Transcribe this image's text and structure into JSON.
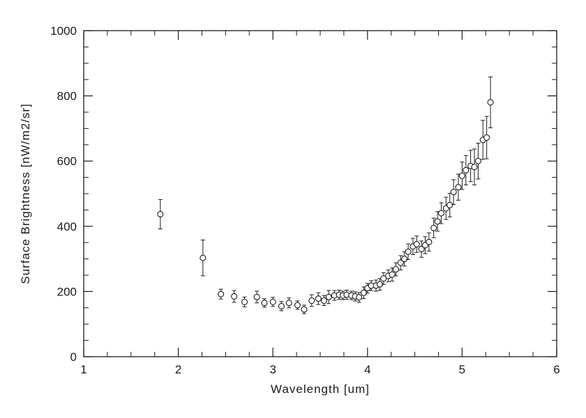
{
  "chart_data": {
    "type": "scatter",
    "title": "",
    "xlabel": "Wavelength [um]",
    "ylabel": "Surface Brightness [nW/m2/sr]",
    "xlim": [
      1,
      6
    ],
    "ylim": [
      0,
      1000
    ],
    "x_major_step": 1,
    "x_minor_step": 0.25,
    "y_major_step": 200,
    "y_minor_step": 50,
    "grid": "off",
    "legend": "none",
    "marker": "open-circle",
    "error_bars": true,
    "color": "#1a1a1a",
    "points": [
      [
        1.81,
        437,
        45
      ],
      [
        2.26,
        303,
        55
      ],
      [
        2.45,
        192,
        15
      ],
      [
        2.59,
        185,
        18
      ],
      [
        2.7,
        168,
        15
      ],
      [
        2.83,
        183,
        18
      ],
      [
        2.91,
        165,
        13
      ],
      [
        3.0,
        168,
        14
      ],
      [
        3.09,
        155,
        14
      ],
      [
        3.17,
        165,
        15
      ],
      [
        3.26,
        158,
        13
      ],
      [
        3.33,
        145,
        13
      ],
      [
        3.41,
        172,
        18
      ],
      [
        3.48,
        178,
        18
      ],
      [
        3.54,
        172,
        15
      ],
      [
        3.59,
        183,
        20
      ],
      [
        3.65,
        188,
        15
      ],
      [
        3.7,
        190,
        14
      ],
      [
        3.74,
        188,
        13
      ],
      [
        3.78,
        190,
        14
      ],
      [
        3.83,
        188,
        13
      ],
      [
        3.87,
        185,
        14
      ],
      [
        3.91,
        182,
        15
      ],
      [
        3.96,
        196,
        18
      ],
      [
        4.0,
        210,
        15
      ],
      [
        4.04,
        218,
        15
      ],
      [
        4.09,
        218,
        17
      ],
      [
        4.13,
        222,
        18
      ],
      [
        4.17,
        240,
        18
      ],
      [
        4.22,
        248,
        18
      ],
      [
        4.26,
        252,
        20
      ],
      [
        4.3,
        268,
        20
      ],
      [
        4.35,
        288,
        22
      ],
      [
        4.39,
        300,
        22
      ],
      [
        4.43,
        322,
        24
      ],
      [
        4.48,
        338,
        25
      ],
      [
        4.52,
        345,
        25
      ],
      [
        4.57,
        330,
        25
      ],
      [
        4.61,
        342,
        26
      ],
      [
        4.65,
        352,
        28
      ],
      [
        4.7,
        395,
        30
      ],
      [
        4.74,
        415,
        30
      ],
      [
        4.78,
        440,
        32
      ],
      [
        4.83,
        455,
        34
      ],
      [
        4.87,
        465,
        36
      ],
      [
        4.91,
        505,
        38
      ],
      [
        4.96,
        520,
        40
      ],
      [
        5.0,
        555,
        42
      ],
      [
        5.04,
        572,
        45
      ],
      [
        5.09,
        585,
        48
      ],
      [
        5.13,
        582,
        55
      ],
      [
        5.17,
        600,
        55
      ],
      [
        5.22,
        665,
        60
      ],
      [
        5.26,
        672,
        65
      ],
      [
        5.3,
        780,
        78
      ]
    ]
  }
}
